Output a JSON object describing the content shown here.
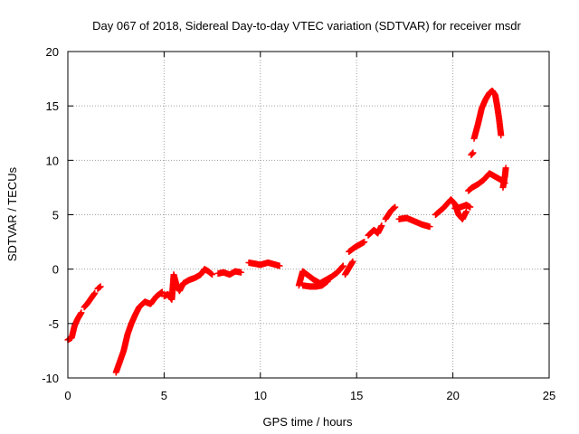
{
  "chart_data": {
    "type": "scatter",
    "title": "Day 067 of 2018, Sidereal Day-to-day VTEC variation (SDTVAR) for receiver msdr",
    "xlabel": "GPS time / hours",
    "ylabel": "SDTVAR / TECUs",
    "xlim": [
      0,
      25
    ],
    "ylim": [
      -10,
      20
    ],
    "xticks": [
      0,
      5,
      10,
      15,
      20,
      25
    ],
    "yticks": [
      -10,
      -5,
      0,
      5,
      10,
      15,
      20
    ],
    "grid": true,
    "marker": "+",
    "color": "#ff0000",
    "segments": [
      [
        [
          0.0,
          -6.5
        ],
        [
          0.2,
          -6.3
        ],
        [
          0.35,
          -5.2
        ],
        [
          0.5,
          -4.6
        ],
        [
          0.7,
          -4.0
        ]
      ],
      [
        [
          0.85,
          -3.5
        ],
        [
          1.0,
          -3.2
        ],
        [
          1.2,
          -2.7
        ],
        [
          1.4,
          -2.2
        ]
      ],
      [
        [
          1.55,
          -1.8
        ],
        [
          1.7,
          -1.6
        ]
      ],
      [
        [
          2.5,
          -9.5
        ],
        [
          2.7,
          -8.5
        ],
        [
          2.9,
          -7.5
        ],
        [
          3.1,
          -6.0
        ],
        [
          3.3,
          -5.0
        ],
        [
          3.5,
          -4.2
        ],
        [
          3.7,
          -3.5
        ],
        [
          4.0,
          -3.0
        ],
        [
          4.3,
          -3.2
        ],
        [
          4.6,
          -2.5
        ],
        [
          4.9,
          -2.1
        ]
      ],
      [
        [
          5.0,
          -2.5
        ],
        [
          5.2,
          -2.3
        ],
        [
          5.4,
          -2.8
        ],
        [
          5.5,
          -0.5
        ],
        [
          5.65,
          -1.5
        ],
        [
          5.8,
          -2.0
        ],
        [
          6.0,
          -1.3
        ],
        [
          6.3,
          -1.0
        ],
        [
          6.6,
          -0.8
        ],
        [
          6.9,
          -0.5
        ],
        [
          7.1,
          0.0
        ],
        [
          7.3,
          -0.2
        ],
        [
          7.5,
          -0.5
        ]
      ],
      [
        [
          7.8,
          -0.4
        ],
        [
          8.1,
          -0.3
        ],
        [
          8.4,
          -0.5
        ],
        [
          8.7,
          -0.2
        ],
        [
          9.0,
          -0.3
        ]
      ],
      [
        [
          9.4,
          0.6
        ],
        [
          9.7,
          0.5
        ],
        [
          10.0,
          0.4
        ],
        [
          10.4,
          0.6
        ],
        [
          10.8,
          0.4
        ],
        [
          11.0,
          0.3
        ]
      ],
      [
        [
          12.0,
          -1.5
        ],
        [
          12.2,
          -0.2
        ],
        [
          12.5,
          -0.6
        ],
        [
          12.8,
          -1.0
        ],
        [
          13.1,
          -1.3
        ],
        [
          13.4,
          -1.0
        ],
        [
          13.7,
          -0.7
        ],
        [
          14.0,
          -0.3
        ],
        [
          14.3,
          0.3
        ]
      ],
      [
        [
          12.2,
          -1.5
        ],
        [
          12.6,
          -1.6
        ],
        [
          12.9,
          -1.6
        ],
        [
          13.2,
          -1.5
        ],
        [
          13.5,
          -1.1
        ]
      ],
      [
        [
          14.4,
          -0.5
        ],
        [
          14.6,
          0.1
        ],
        [
          14.8,
          0.7
        ]
      ],
      [
        [
          14.6,
          1.6
        ],
        [
          14.9,
          2.0
        ],
        [
          15.2,
          2.3
        ],
        [
          15.4,
          2.5
        ]
      ],
      [
        [
          15.6,
          3.1
        ],
        [
          15.9,
          3.6
        ],
        [
          16.1,
          3.3
        ],
        [
          16.3,
          4.0
        ]
      ],
      [
        [
          16.5,
          4.6
        ],
        [
          16.8,
          5.4
        ],
        [
          17.0,
          5.7
        ]
      ],
      [
        [
          17.2,
          4.6
        ],
        [
          17.6,
          4.7
        ],
        [
          18.0,
          4.4
        ],
        [
          18.4,
          4.1
        ],
        [
          18.8,
          3.9
        ]
      ],
      [
        [
          19.1,
          5.0
        ],
        [
          19.5,
          5.6
        ],
        [
          19.9,
          6.4
        ],
        [
          20.1,
          6.0
        ],
        [
          20.3,
          5.0
        ],
        [
          20.5,
          4.6
        ],
        [
          20.7,
          5.3
        ]
      ],
      [
        [
          20.1,
          5.6
        ],
        [
          20.4,
          5.7
        ],
        [
          20.7,
          5.9
        ],
        [
          20.9,
          5.7
        ]
      ],
      [
        [
          20.8,
          7.2
        ],
        [
          21.0,
          7.5
        ],
        [
          21.3,
          7.8
        ],
        [
          21.6,
          8.2
        ],
        [
          21.9,
          8.8
        ],
        [
          22.1,
          8.6
        ],
        [
          22.3,
          8.4
        ],
        [
          22.5,
          8.2
        ],
        [
          22.7,
          7.9
        ]
      ],
      [
        [
          22.6,
          7.5
        ],
        [
          22.7,
          8.5
        ],
        [
          22.75,
          9.3
        ]
      ],
      [
        [
          20.95,
          10.5
        ],
        [
          21.05,
          10.7
        ]
      ],
      [
        [
          21.1,
          12.0
        ],
        [
          21.3,
          13.3
        ],
        [
          21.5,
          14.8
        ],
        [
          21.7,
          15.6
        ],
        [
          21.9,
          16.2
        ],
        [
          22.05,
          16.4
        ],
        [
          22.2,
          16.0
        ],
        [
          22.3,
          15.0
        ],
        [
          22.4,
          13.8
        ],
        [
          22.5,
          12.3
        ]
      ]
    ]
  }
}
